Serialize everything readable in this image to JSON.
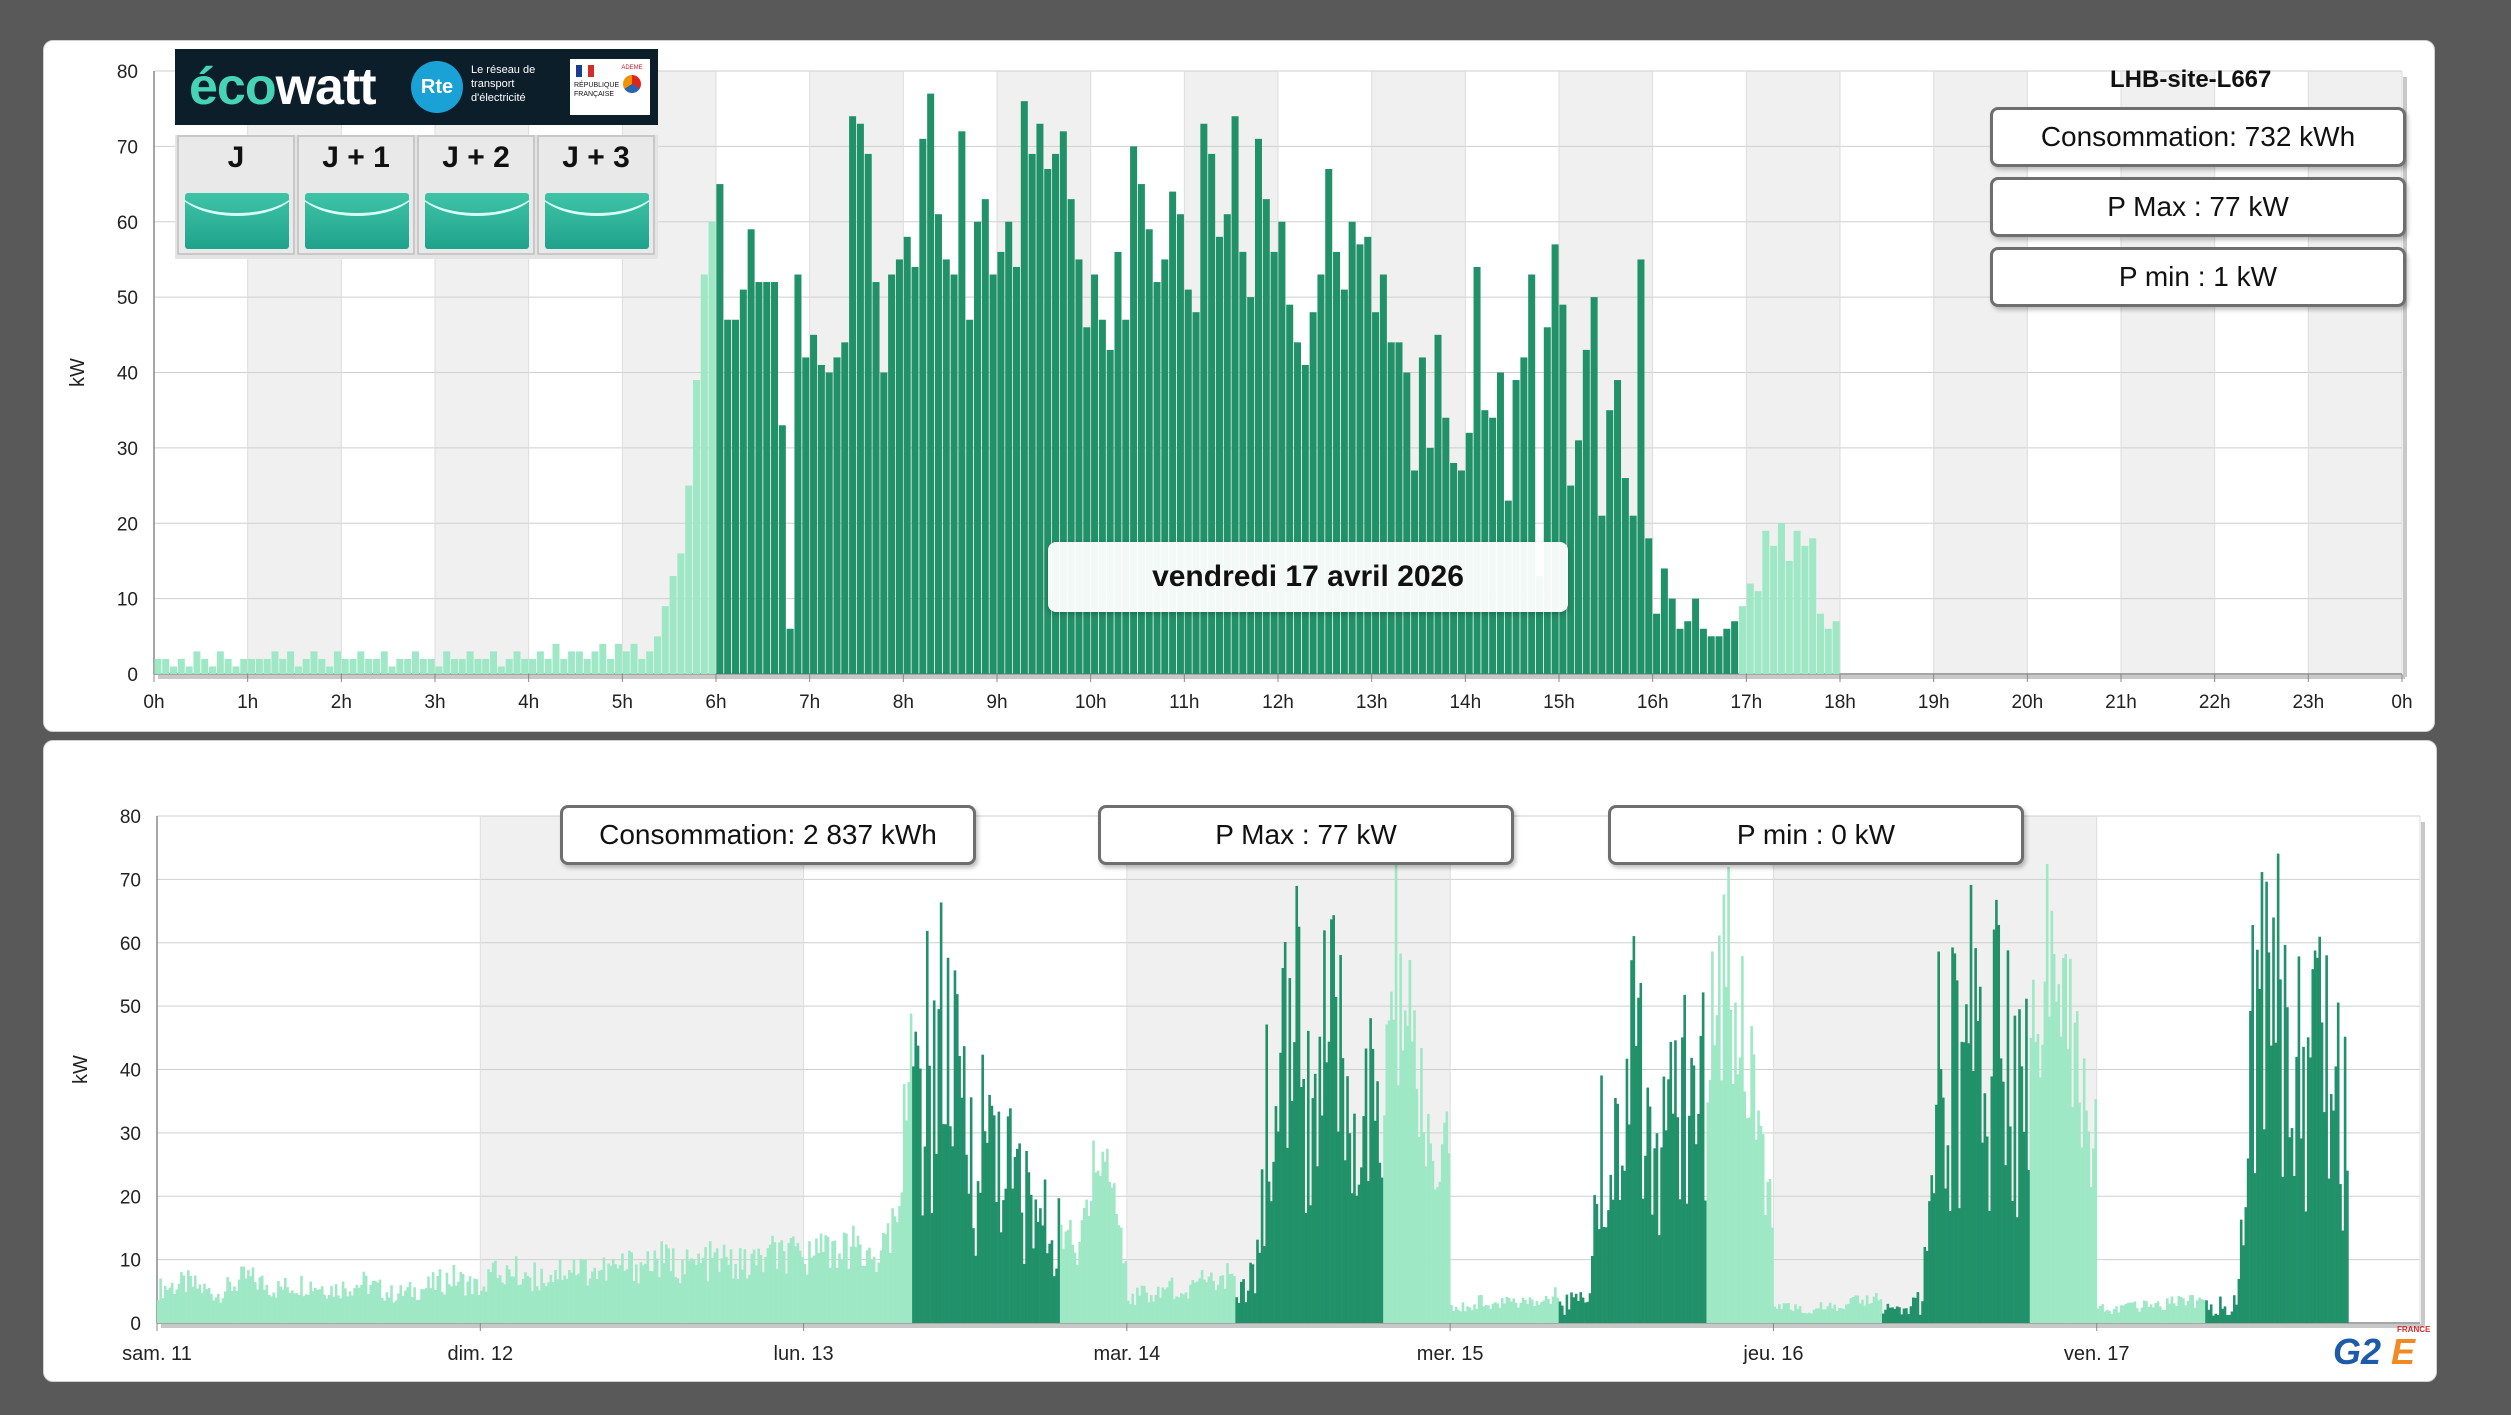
{
  "ecowatt": {
    "brand_prefix": "éco",
    "brand_suffix": "watt",
    "rte_logo": "Rte",
    "rte_tagline": "Le réseau de transport d'électricité",
    "gov_label": "RÉPUBLIQUE FRANÇAISE",
    "ademe_label": "ADEME",
    "days": [
      "J",
      "J + 1",
      "J + 2",
      "J + 3"
    ],
    "signal_color": "#2ab597"
  },
  "top_panel": {
    "site_name": "LHB-site-L667",
    "consommation": "Consommation: 732 kWh",
    "p_max": "P Max :  77 kW",
    "p_min": "P min : 1 kW",
    "date_label": "vendredi 17 avril 2026"
  },
  "bottom_panel": {
    "consommation": "Consommation: 2 837 kWh",
    "p_max": "P Max :  77 kW",
    "p_min": "P min : 0 kW"
  },
  "logo": {
    "brand": "G2",
    "e": "E",
    "country": "FRANCE"
  },
  "colors": {
    "dark_green": "#21916a",
    "light_green": "#9fe8c6",
    "grid_band": "#f0f0f0"
  },
  "chart_data": [
    {
      "type": "bar",
      "ylabel": "kW",
      "ylim": [
        0,
        80
      ],
      "yticks": [
        0,
        10,
        20,
        30,
        40,
        50,
        60,
        70,
        80
      ],
      "x_tick_labels": [
        "0h",
        "1h",
        "2h",
        "3h",
        "4h",
        "5h",
        "6h",
        "7h",
        "8h",
        "9h",
        "10h",
        "11h",
        "12h",
        "13h",
        "14h",
        "15h",
        "16h",
        "17h",
        "18h",
        "19h",
        "20h",
        "21h",
        "22h",
        "23h",
        "0h"
      ],
      "interval_minutes": 5,
      "series": [
        {
          "peak_hours": "6h-16h50",
          "values": [
            2,
            2,
            1,
            2,
            1,
            3,
            2,
            1,
            3,
            2,
            1,
            2,
            2,
            2,
            2,
            3,
            2,
            3,
            1,
            2,
            3,
            2,
            1,
            3,
            2,
            2,
            3,
            2,
            2,
            3,
            1,
            2,
            2,
            3,
            2,
            2,
            1,
            3,
            2,
            2,
            3,
            2,
            2,
            3,
            1,
            2,
            3,
            2,
            2,
            3,
            2,
            4,
            2,
            3,
            3,
            2,
            3,
            4,
            2,
            4,
            3,
            4,
            2,
            3,
            5,
            9,
            13,
            16,
            25,
            39,
            53,
            60,
            65,
            47,
            47,
            51,
            59,
            52,
            52,
            52,
            33,
            6,
            53,
            42,
            45,
            41,
            40,
            42,
            44,
            74,
            73,
            69,
            52,
            40,
            53,
            55,
            58,
            54,
            71,
            77,
            61,
            55,
            53,
            72,
            47,
            60,
            63,
            53,
            56,
            60,
            54,
            76,
            69,
            73,
            67,
            69,
            72,
            63,
            55,
            46,
            53,
            47,
            43,
            56,
            47,
            70,
            65,
            59,
            52,
            55,
            64,
            61,
            51,
            48,
            73,
            69,
            58,
            61,
            74,
            56,
            50,
            71,
            63,
            56,
            60,
            49,
            44,
            41,
            48,
            53,
            67,
            56,
            51,
            60,
            57,
            58,
            48,
            53,
            44,
            44,
            40,
            27,
            42,
            30,
            45,
            34,
            28,
            27,
            32,
            54,
            35,
            34,
            40,
            23,
            39,
            42,
            53,
            13,
            46,
            57,
            49,
            25,
            31,
            43,
            50,
            21,
            35,
            39,
            26,
            21,
            55,
            18,
            8,
            14,
            10,
            6,
            7,
            10,
            6,
            5,
            5,
            6,
            7,
            9,
            12,
            11,
            19,
            17,
            20,
            15,
            19,
            17,
            18,
            8,
            6,
            7
          ]
        }
      ]
    },
    {
      "type": "bar",
      "ylabel": "kW",
      "ylim": [
        0,
        80
      ],
      "yticks": [
        0,
        10,
        20,
        30,
        40,
        50,
        60,
        70,
        80
      ],
      "x_tick_labels": [
        "sam. 11",
        "dim. 12",
        "lun. 13",
        "mar. 14",
        "mer. 15",
        "jeu. 16",
        "ven. 17"
      ],
      "series": [
        {
          "name": "sam. 11",
          "values": [
            6,
            7,
            5,
            8,
            6,
            7,
            6,
            7,
            5,
            6,
            8,
            6
          ]
        },
        {
          "name": "dim. 12",
          "values": [
            8,
            9,
            8,
            10,
            9,
            10,
            11,
            10,
            11,
            10,
            12,
            11
          ]
        },
        {
          "name": "lun. 13",
          "values": [
            12,
            13,
            12,
            13,
            12,
            14,
            40,
            60,
            72,
            55,
            42,
            50,
            38,
            30,
            25,
            20,
            10,
            32,
            26,
            8
          ]
        },
        {
          "name": "mar. 14",
          "values": [
            4,
            5,
            5,
            6,
            6,
            7,
            7,
            8,
            9,
            10,
            60,
            66,
            72,
            55,
            70,
            62,
            52,
            55,
            38,
            62,
            49,
            38,
            20,
            33
          ]
        },
        {
          "name": "mer. 15",
          "values": [
            3,
            3,
            4,
            3,
            4,
            4,
            5,
            5,
            5,
            6,
            54,
            70,
            63,
            67,
            40,
            62,
            52,
            58,
            66,
            52,
            38,
            13
          ]
        },
        {
          "name": "jeu. 16",
          "values": [
            3,
            3,
            2,
            3,
            3,
            4,
            4,
            4,
            5,
            5,
            60,
            70,
            72,
            66,
            70,
            65,
            52,
            64,
            55,
            40,
            30
          ]
        },
        {
          "name": "ven. 17",
          "values": [
            3,
            2,
            3,
            3,
            3,
            4,
            4,
            4,
            5,
            5,
            63,
            77,
            74,
            68,
            72,
            69,
            55,
            58,
            40,
            47,
            20,
            10
          ]
        }
      ]
    }
  ]
}
